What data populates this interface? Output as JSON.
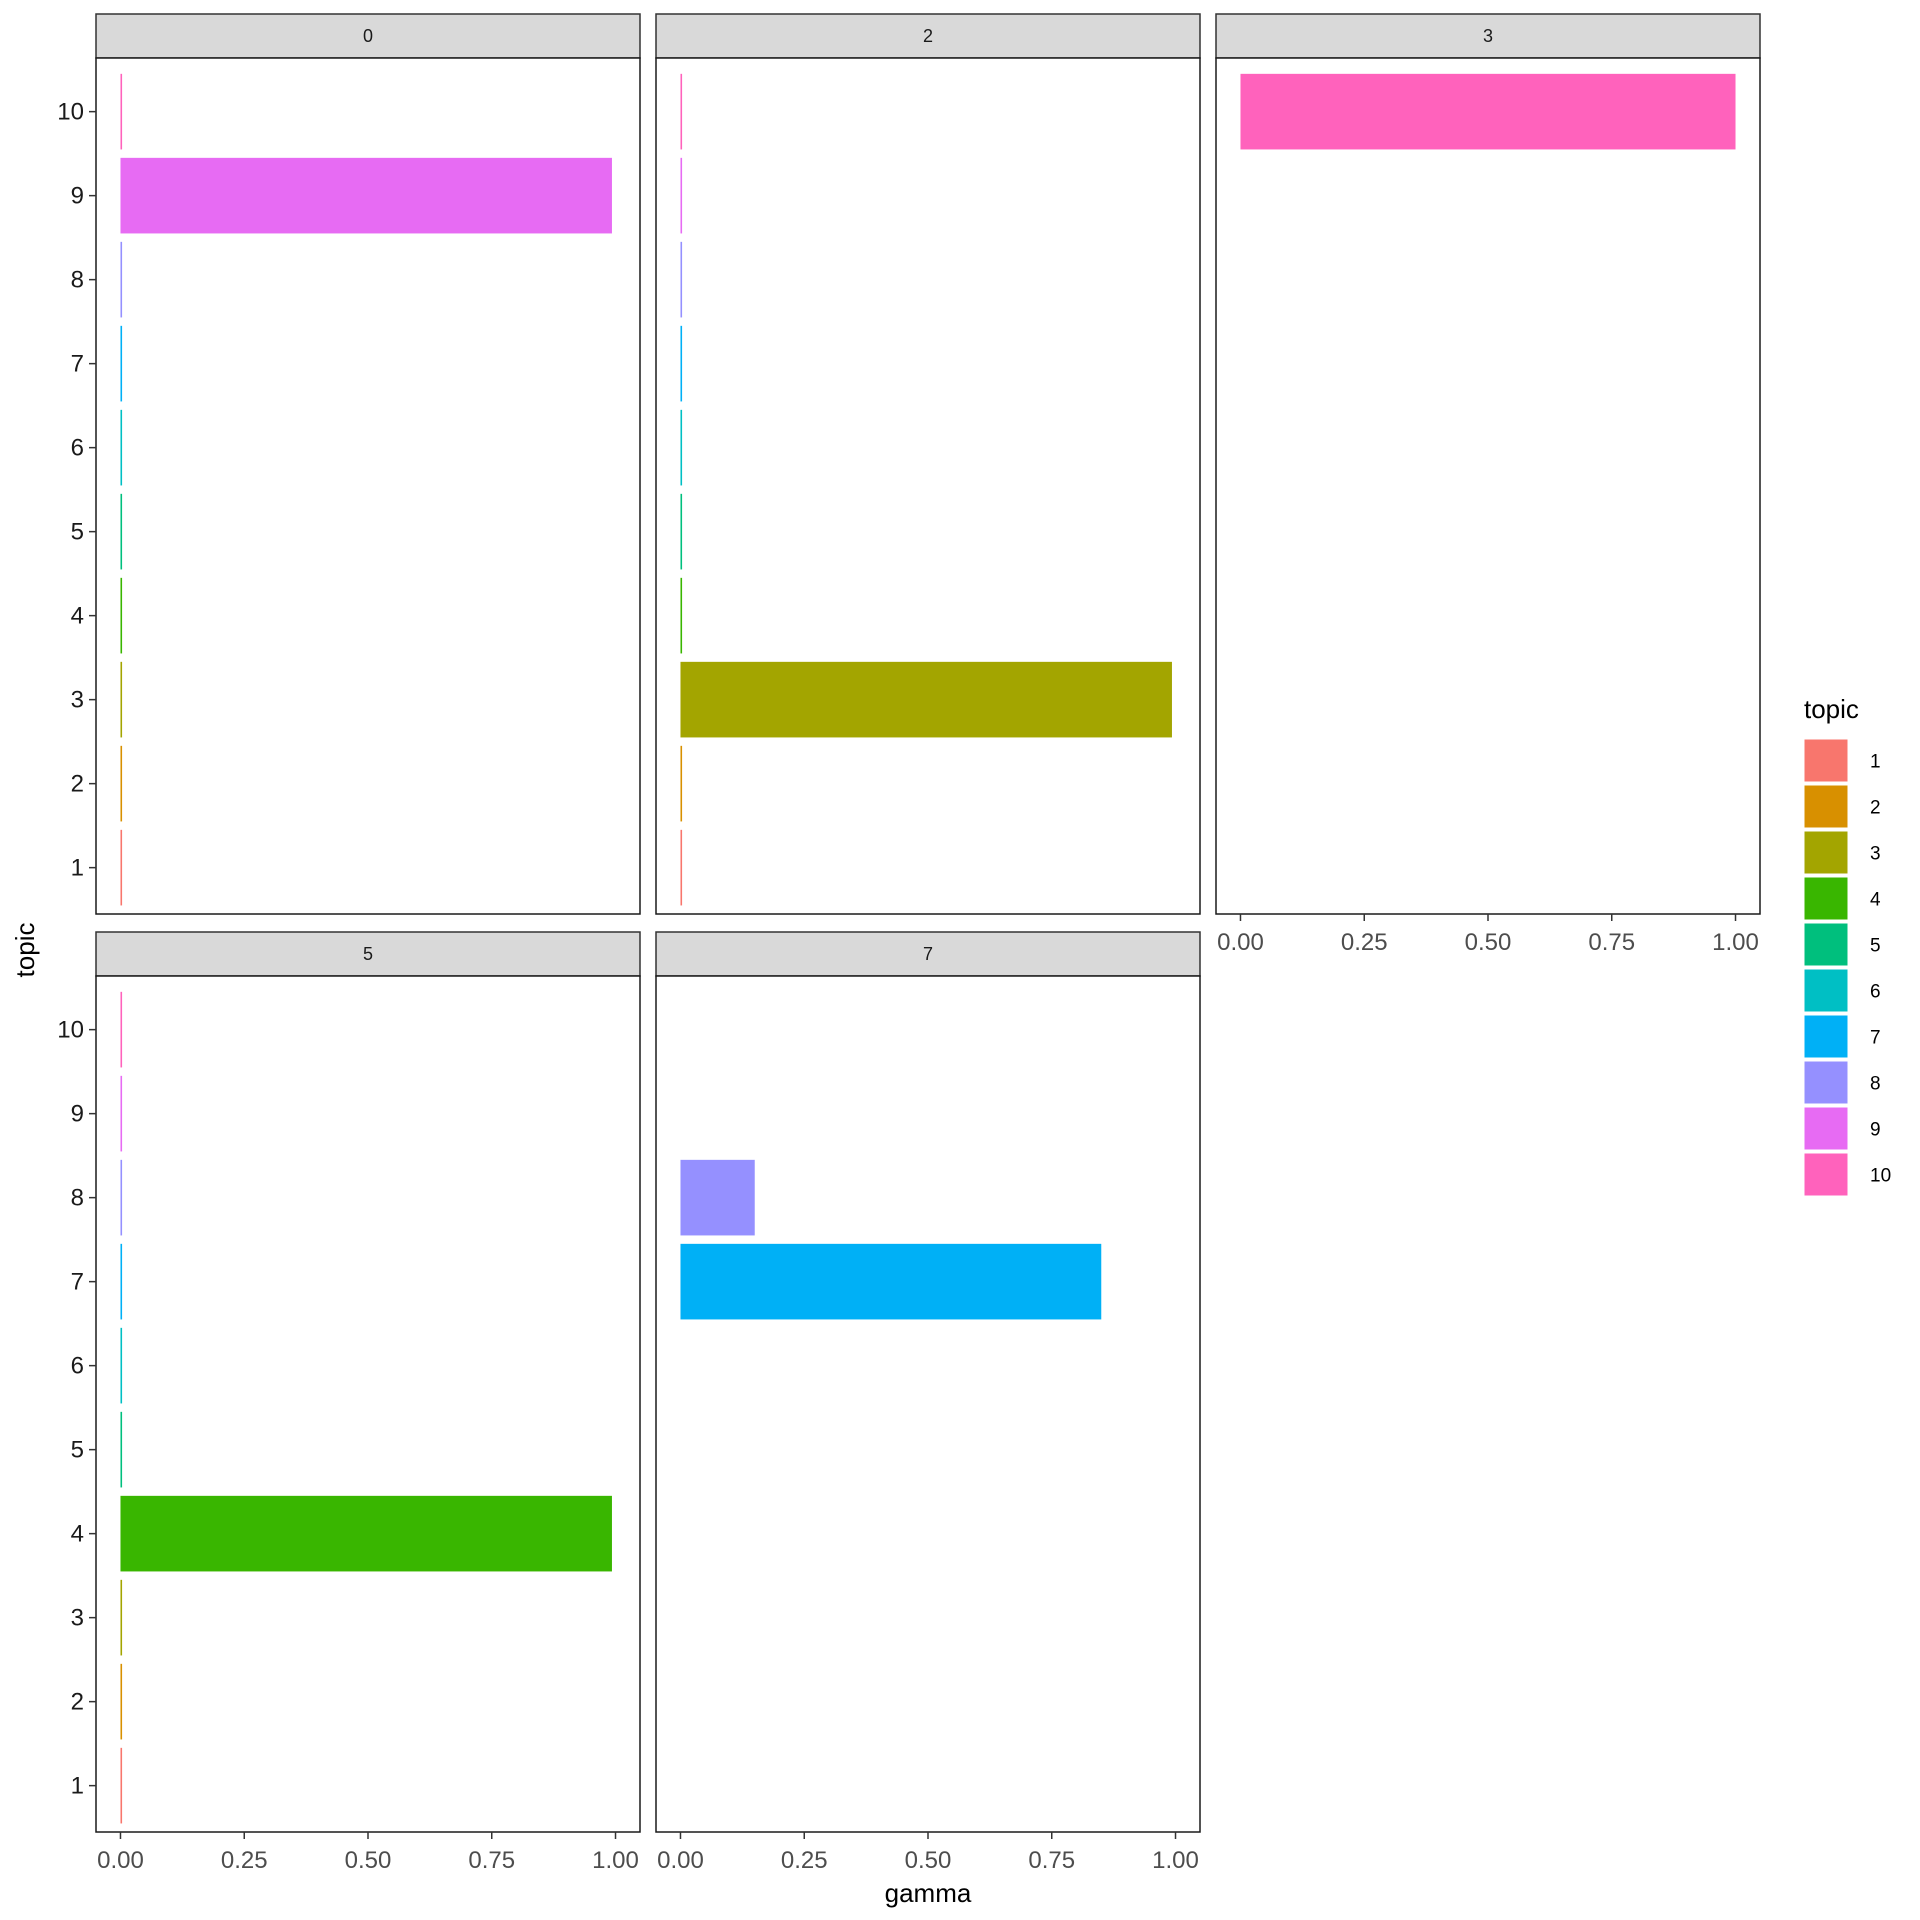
{
  "chart_data": {
    "type": "bar",
    "orientation": "horizontal",
    "xlabel": "gamma",
    "ylabel": "topic",
    "xlim": [
      0,
      1
    ],
    "x_ticks": [
      "0.00",
      "0.25",
      "0.50",
      "0.75",
      "1.00"
    ],
    "y_categories": [
      "1",
      "2",
      "3",
      "4",
      "5",
      "6",
      "7",
      "8",
      "9",
      "10"
    ],
    "facets": [
      {
        "label": "0",
        "values": [
          0.0008,
          0.0008,
          0.0008,
          0.0008,
          0.0008,
          0.0008,
          0.0008,
          0.0008,
          0.9928,
          0.0008
        ]
      },
      {
        "label": "2",
        "values": [
          0.0008,
          0.0008,
          0.9928,
          0.0008,
          0.0008,
          0.0008,
          0.0008,
          0.0008,
          0.0008,
          0.0008
        ]
      },
      {
        "label": "3",
        "values": [
          0,
          0,
          0,
          0,
          0,
          0,
          0,
          0,
          0,
          1.0
        ]
      },
      {
        "label": "5",
        "values": [
          0.0008,
          0.0008,
          0.0008,
          0.9928,
          0.0008,
          0.0008,
          0.0008,
          0.0008,
          0.0008,
          0.0008
        ]
      },
      {
        "label": "7",
        "values": [
          0,
          0,
          0,
          0,
          0,
          0,
          0.85,
          0.15,
          0,
          0
        ]
      }
    ],
    "legend": {
      "title": "topic",
      "position": "right",
      "entries": [
        "1",
        "2",
        "3",
        "4",
        "5",
        "6",
        "7",
        "8",
        "9",
        "10"
      ],
      "colors": [
        "#F8766D",
        "#D89000",
        "#A3A500",
        "#39B600",
        "#00BF7D",
        "#00BFC4",
        "#00B0F6",
        "#9590FF",
        "#E76BF3",
        "#FF62BC"
      ]
    },
    "grid": false
  }
}
